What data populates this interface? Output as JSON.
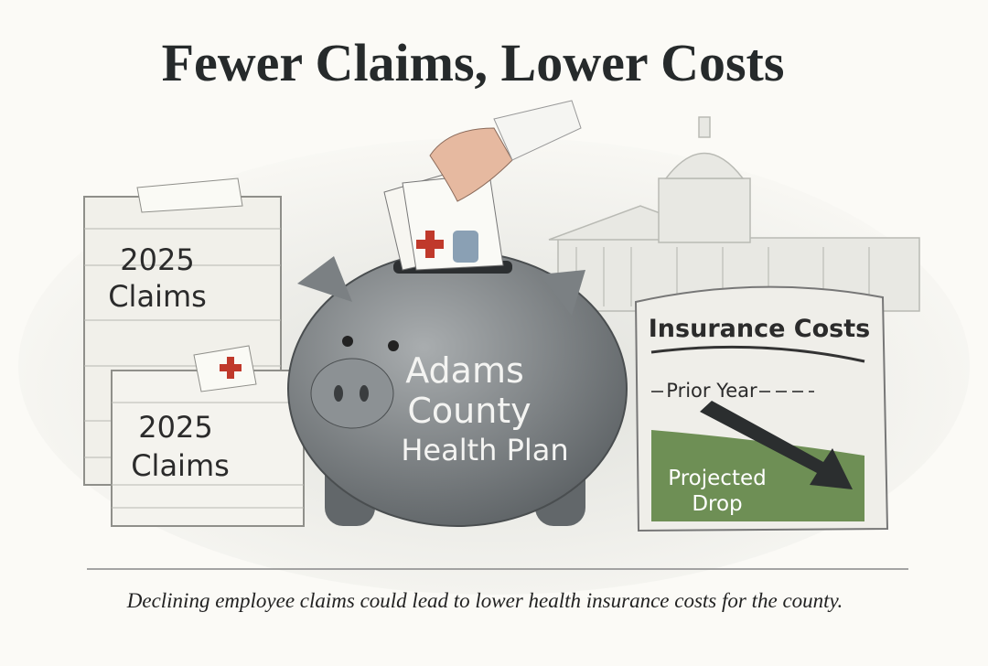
{
  "header": {
    "title": "Fewer Claims, Lower Costs"
  },
  "illustration": {
    "stacks": [
      {
        "lines": [
          "2025",
          "Claims"
        ]
      },
      {
        "lines": [
          "2025",
          "Claims"
        ]
      }
    ],
    "piggy_bank": {
      "lines": [
        "Adams",
        "County",
        "Health Plan"
      ]
    },
    "sign": {
      "title": "Insurance Costs",
      "baseline_label": "Prior Year",
      "trend_label": [
        "Projected",
        "Drop"
      ]
    }
  },
  "caption": "Declining employee claims could lead to lower health insurance costs for the county."
}
